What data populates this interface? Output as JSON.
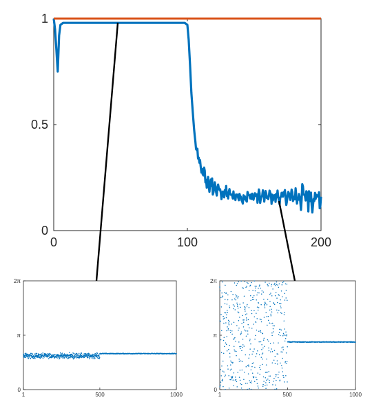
{
  "chart_data": [
    {
      "type": "line",
      "xlim": [
        0,
        200
      ],
      "ylim": [
        0,
        1
      ],
      "x_ticks": [
        "0",
        "100",
        "200"
      ],
      "y_ticks": [
        "0",
        "0.5",
        "1"
      ],
      "grid": false,
      "series": [
        {
          "color": "#d95319",
          "x": [
            0,
            200
          ],
          "y": [
            1.0,
            1.0
          ]
        },
        {
          "color": "#0072bd",
          "x": [
            0,
            1,
            2,
            3,
            4,
            5,
            7,
            10,
            20,
            40,
            60,
            80,
            98,
            100,
            101,
            102,
            103,
            104,
            105,
            106,
            107,
            108,
            110,
            112,
            115,
            118,
            120,
            125,
            130,
            140,
            150,
            160,
            170,
            180,
            190,
            200
          ],
          "y": [
            1.0,
            0.95,
            0.85,
            0.75,
            0.92,
            0.97,
            0.98,
            0.98,
            0.98,
            0.98,
            0.98,
            0.98,
            0.98,
            0.97,
            0.9,
            0.78,
            0.65,
            0.56,
            0.48,
            0.42,
            0.38,
            0.34,
            0.3,
            0.26,
            0.23,
            0.21,
            0.2,
            0.18,
            0.17,
            0.16,
            0.16,
            0.16,
            0.16,
            0.16,
            0.16,
            0.16
          ]
        }
      ],
      "annotations": [
        {
          "from_x": 50,
          "to": "inset-left"
        },
        {
          "from_x": 170,
          "to": "inset-right"
        }
      ]
    },
    {
      "type": "scatter",
      "id": "inset-left",
      "xlim": [
        1,
        1000
      ],
      "ylim": [
        0,
        6.2832
      ],
      "x_ticks": [
        "1",
        "500",
        "1000"
      ],
      "y_ticks": [
        "0",
        "π",
        "2π"
      ],
      "color": "#0072bd",
      "regime_1": {
        "x_range": [
          1,
          500
        ],
        "center": 1.95,
        "spread": 0.22
      },
      "regime_2": {
        "x_range": [
          500,
          1000
        ],
        "value": 2.08
      }
    },
    {
      "type": "scatter",
      "id": "inset-right",
      "xlim": [
        1,
        1000
      ],
      "ylim": [
        0,
        6.2832
      ],
      "x_ticks": [
        "1",
        "500",
        "1000"
      ],
      "y_ticks": [
        "0",
        "π",
        "2π"
      ],
      "color": "#0072bd",
      "regime_1": {
        "x_range": [
          1,
          500
        ],
        "distribution": "uniform",
        "range": [
          0,
          6.2832
        ]
      },
      "regime_2": {
        "x_range": [
          500,
          1000
        ],
        "value": 2.75
      }
    }
  ]
}
